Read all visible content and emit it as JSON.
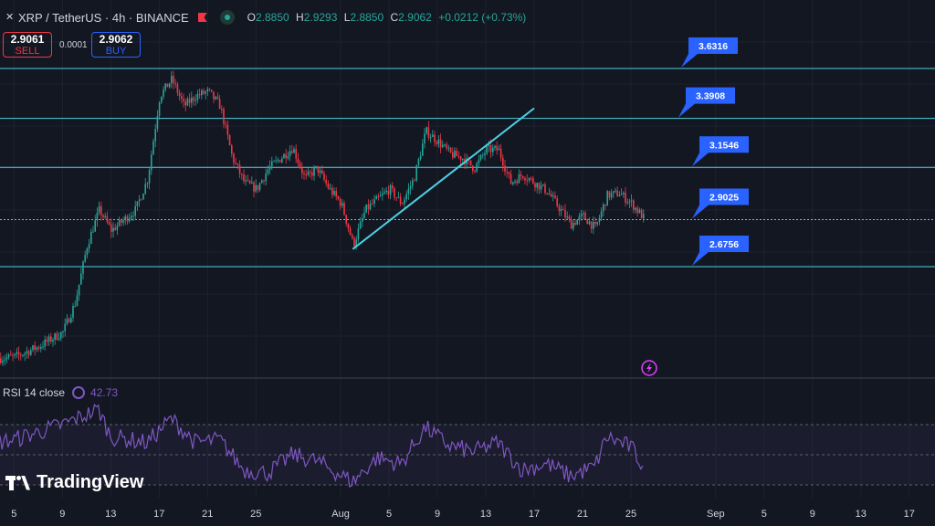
{
  "header": {
    "symbol": "XRP / TetherUS · 4h · BINANCE",
    "ohlc": [
      {
        "label": "O",
        "value": "2.8850"
      },
      {
        "label": "H",
        "value": "2.9293"
      },
      {
        "label": "L",
        "value": "2.8850"
      },
      {
        "label": "C",
        "value": "2.9062"
      }
    ],
    "change": "+0.0212 (+0.73%)"
  },
  "trade": {
    "sell_price": "2.9061",
    "sell_label": "SELL",
    "spread": "0.0001",
    "buy_price": "2.9062",
    "buy_label": "BUY"
  },
  "indicator": {
    "label": "RSI 14 close",
    "value": "42.73"
  },
  "brand": "TradingView",
  "colors": {
    "background": "#131722",
    "up": "#26a69a",
    "down": "#f23645",
    "level_line": "#4dd0e1",
    "label_bg": "#2962ff",
    "rsi": "#7e57c2"
  },
  "chart_data": {
    "type": "candlestick",
    "x_tick_labels": [
      "5",
      "9",
      "13",
      "17",
      "21",
      "25",
      "Aug",
      "5",
      "9",
      "13",
      "17",
      "21",
      "25",
      "Sep",
      "5",
      "9",
      "13",
      "17"
    ],
    "price_range": [
      2.0,
      3.75
    ],
    "levels": [
      {
        "price": 3.6316,
        "label": "3.6316"
      },
      {
        "price": 3.3908,
        "label": "3.3908"
      },
      {
        "price": 3.1546,
        "label": "3.1546"
      },
      {
        "price": 2.9025,
        "label": "2.9025"
      },
      {
        "price": 2.6756,
        "label": "2.6756"
      }
    ],
    "trendline": {
      "start": [
        "Aug 2",
        2.76
      ],
      "end": [
        "Aug 17",
        3.44
      ]
    },
    "price_path": [
      [
        "Jul 1",
        2.22
      ],
      [
        "Jul 5",
        2.24
      ],
      [
        "Jul 7",
        2.29
      ],
      [
        "Jul 9",
        2.36
      ],
      [
        "Jul 10",
        2.5
      ],
      [
        "Jul 11",
        2.78
      ],
      [
        "Jul 12",
        2.95
      ],
      [
        "Jul 13",
        2.85
      ],
      [
        "Jul 14",
        2.9
      ],
      [
        "Jul 15",
        2.95
      ],
      [
        "Jul 16",
        3.1
      ],
      [
        "Jul 17",
        3.5
      ],
      [
        "Jul 18",
        3.58
      ],
      [
        "Jul 19",
        3.45
      ],
      [
        "Jul 20",
        3.5
      ],
      [
        "Jul 21",
        3.52
      ],
      [
        "Jul 22",
        3.45
      ],
      [
        "Jul 23",
        3.2
      ],
      [
        "Jul 24",
        3.08
      ],
      [
        "Jul 25",
        3.05
      ],
      [
        "Jul 26",
        3.15
      ],
      [
        "Jul 27",
        3.2
      ],
      [
        "Jul 28",
        3.25
      ],
      [
        "Jul 29",
        3.1
      ],
      [
        "Jul 30",
        3.15
      ],
      [
        "Jul 31",
        3.05
      ],
      [
        "Aug 1",
        2.98
      ],
      [
        "Aug 2",
        2.78
      ],
      [
        "Aug 3",
        2.95
      ],
      [
        "Aug 4",
        3.0
      ],
      [
        "Aug 5",
        3.05
      ],
      [
        "Aug 6",
        2.98
      ],
      [
        "Aug 7",
        3.1
      ],
      [
        "Aug 8",
        3.33
      ],
      [
        "Aug 9",
        3.28
      ],
      [
        "Aug 10",
        3.22
      ],
      [
        "Aug 11",
        3.2
      ],
      [
        "Aug 12",
        3.15
      ],
      [
        "Aug 13",
        3.24
      ],
      [
        "Aug 14",
        3.24
      ],
      [
        "Aug 15",
        3.08
      ],
      [
        "Aug 16",
        3.12
      ],
      [
        "Aug 17",
        3.08
      ],
      [
        "Aug 18",
        3.04
      ],
      [
        "Aug 19",
        2.96
      ],
      [
        "Aug 20",
        2.88
      ],
      [
        "Aug 21",
        2.92
      ],
      [
        "Aug 22",
        2.86
      ],
      [
        "Aug 23",
        3.02
      ],
      [
        "Aug 24",
        3.03
      ],
      [
        "Aug 25",
        2.98
      ],
      [
        "Aug 26",
        2.91
      ]
    ],
    "rsi": {
      "name": "RSI 14 close",
      "last": 42.73,
      "bands": [
        30,
        50,
        70
      ],
      "path": [
        [
          "Jul 1",
          55
        ],
        [
          "Jul 5",
          60
        ],
        [
          "Jul 9",
          70
        ],
        [
          "Jul 12",
          80
        ],
        [
          "Jul 13",
          62
        ],
        [
          "Jul 16",
          58
        ],
        [
          "Jul 18",
          74
        ],
        [
          "Jul 20",
          58
        ],
        [
          "Jul 22",
          60
        ],
        [
          "Jul 24",
          40
        ],
        [
          "Jul 26",
          38
        ],
        [
          "Jul 28",
          50
        ],
        [
          "Jul 30",
          46
        ],
        [
          "Aug 2",
          32
        ],
        [
          "Aug 4",
          48
        ],
        [
          "Aug 6",
          44
        ],
        [
          "Aug 8",
          68
        ],
        [
          "Aug 10",
          56
        ],
        [
          "Aug 12",
          52
        ],
        [
          "Aug 14",
          58
        ],
        [
          "Aug 16",
          40
        ],
        [
          "Aug 18",
          44
        ],
        [
          "Aug 20",
          36
        ],
        [
          "Aug 22",
          42
        ],
        [
          "Aug 23",
          62
        ],
        [
          "Aug 25",
          55
        ],
        [
          "Aug 26",
          42.73
        ]
      ]
    }
  }
}
